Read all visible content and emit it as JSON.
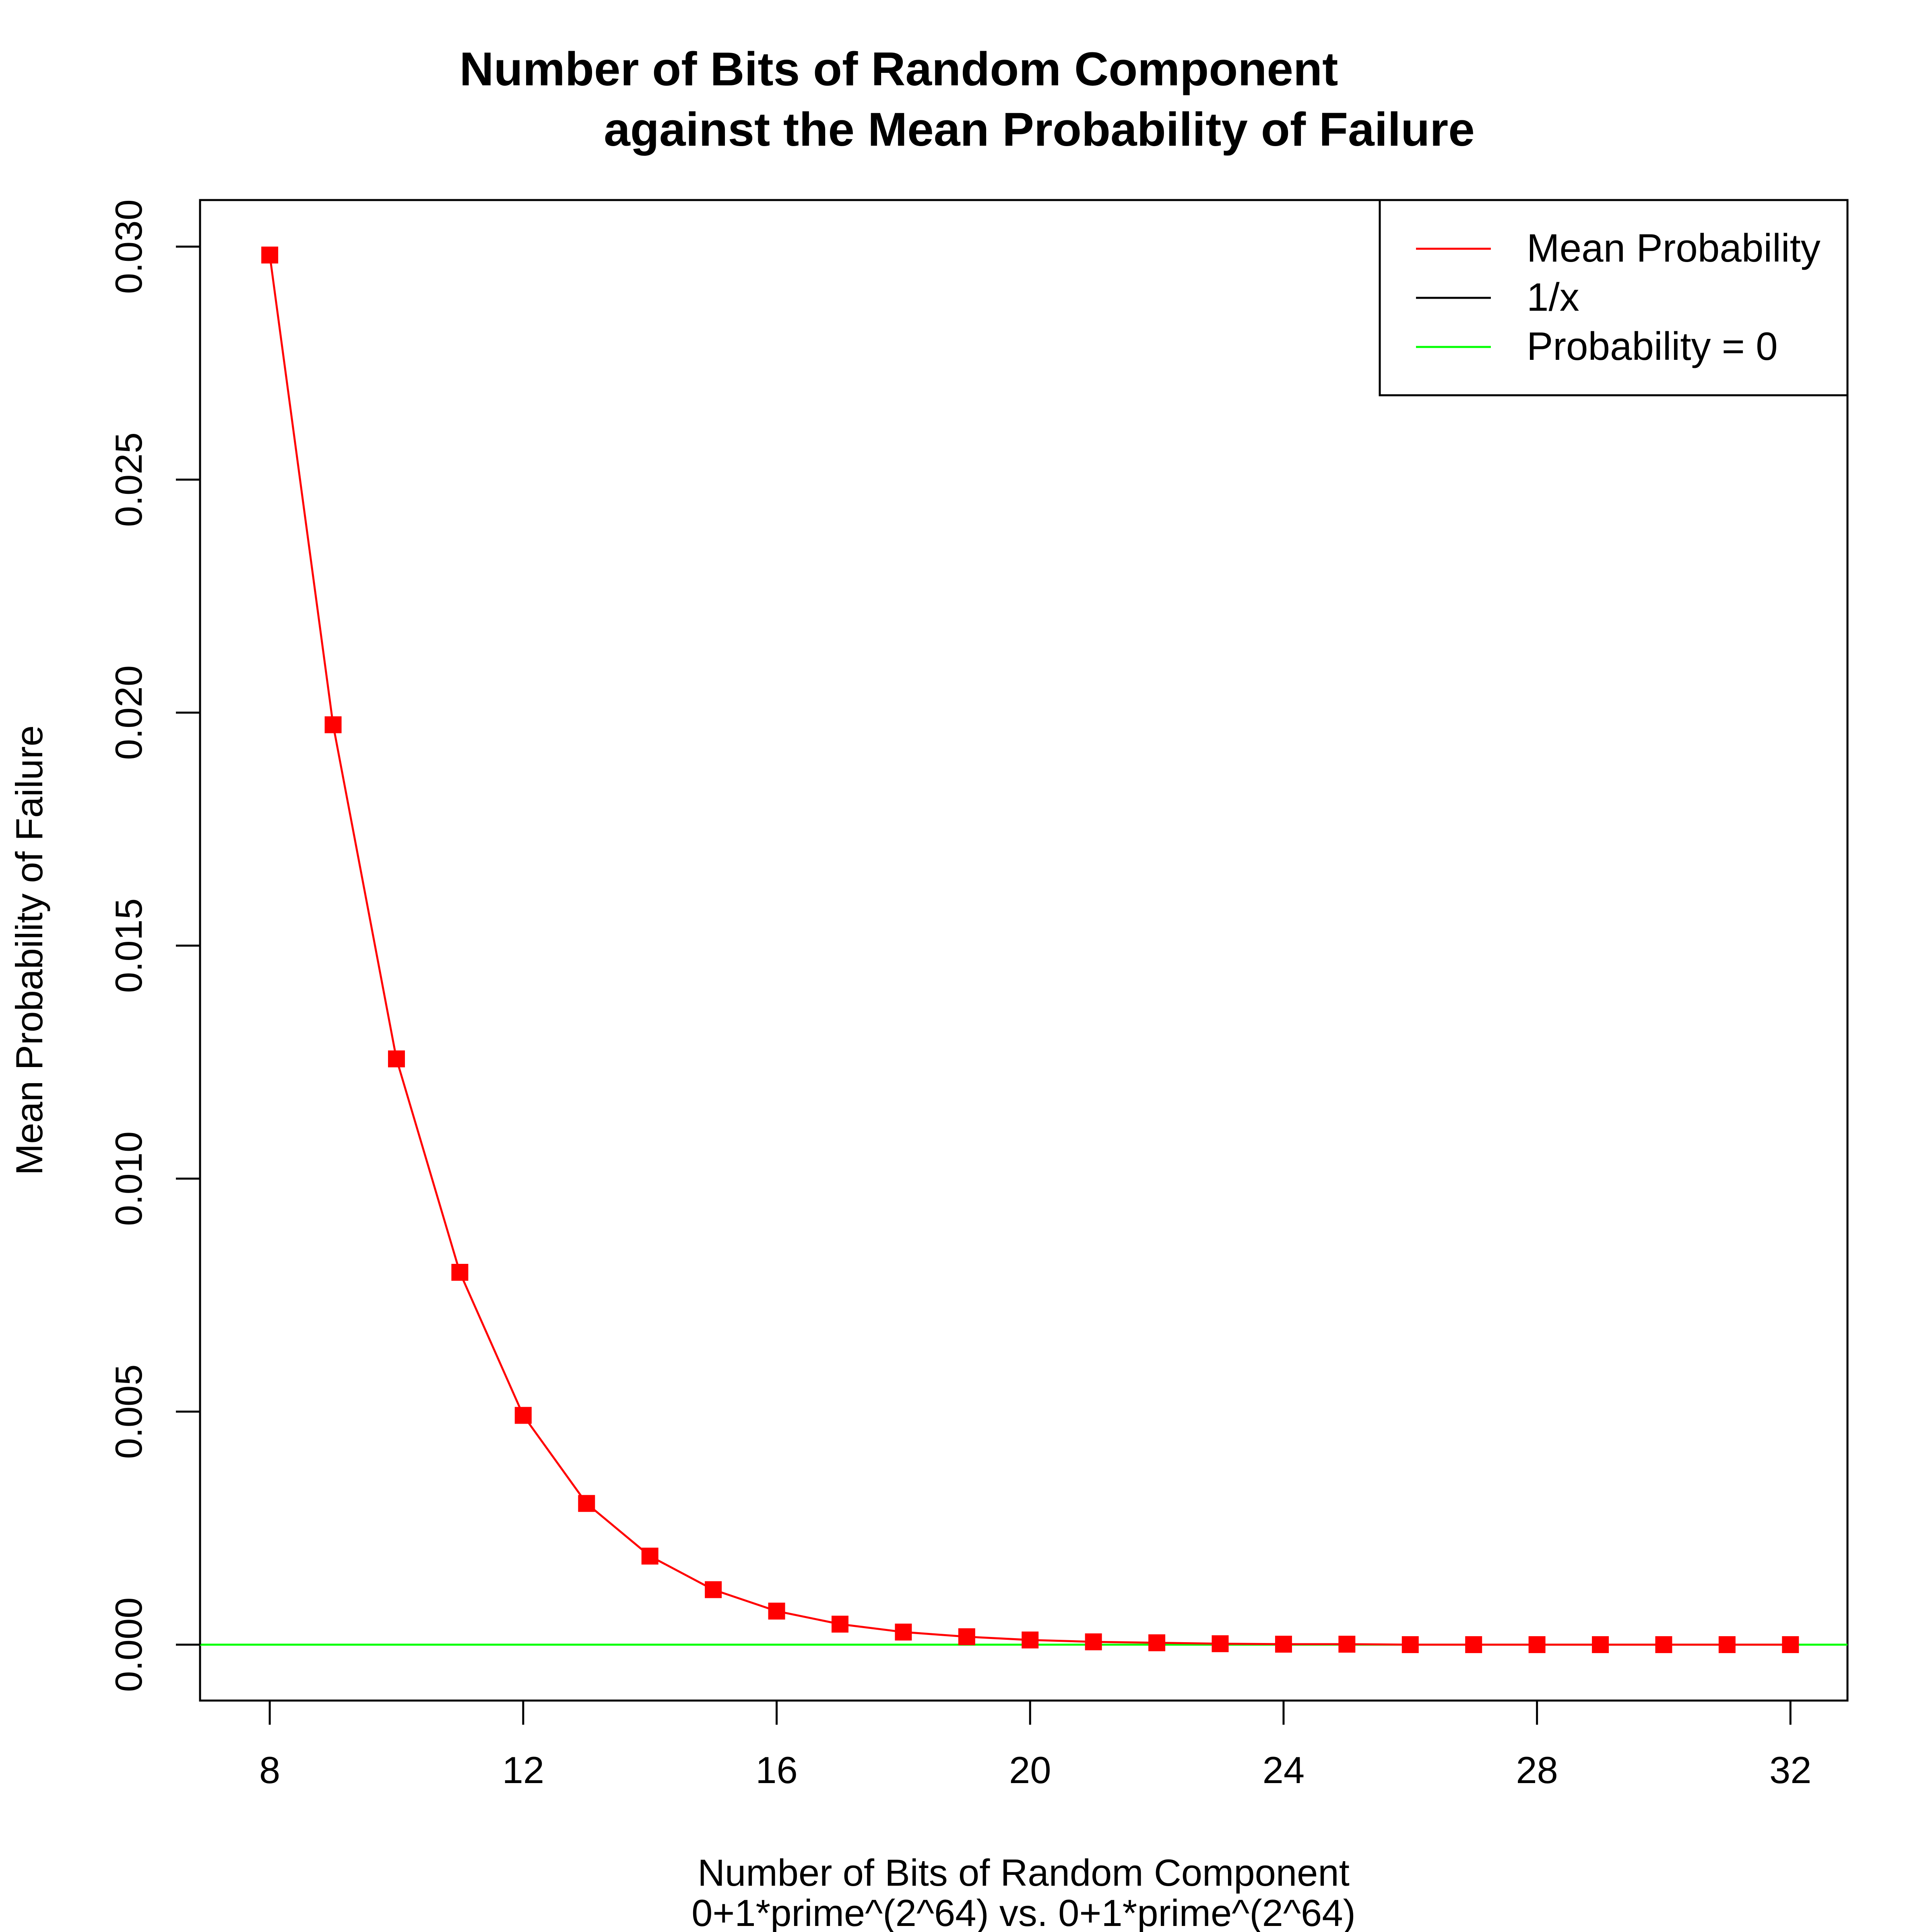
{
  "chart_data": {
    "type": "line",
    "title_line1": "Number of Bits of Random Component",
    "title_line2": "against the Mean Probability of Failure",
    "xlabel_line1": "Number of Bits of Random Component",
    "xlabel_line2": "0+1*prime^(2^64) vs. 0+1*prime^(2^64)",
    "ylabel": "Mean Probability of Failure",
    "xlim": [
      6.9,
      32.9
    ],
    "ylim": [
      -0.0012,
      0.031
    ],
    "x_ticks": [
      8,
      12,
      16,
      20,
      24,
      28,
      32
    ],
    "x_tick_labels": [
      "8",
      "12",
      "16",
      "20",
      "24",
      "28",
      "32"
    ],
    "y_ticks": [
      0.0,
      0.005,
      0.01,
      0.015,
      0.02,
      0.025,
      0.03
    ],
    "y_tick_labels": [
      "0.000",
      "0.005",
      "0.010",
      "0.015",
      "0.020",
      "0.025",
      "0.030"
    ],
    "grid": false,
    "legend_position": "top-right",
    "series": [
      {
        "name": "Mean Probability",
        "color": "#ff0000",
        "marker": "square",
        "x": [
          8,
          9,
          10,
          11,
          12,
          13,
          14,
          15,
          16,
          17,
          18,
          19,
          20,
          21,
          22,
          23,
          24,
          25,
          26,
          27,
          28,
          29,
          30,
          31,
          32
        ],
        "y": [
          0.02982,
          0.01974,
          0.01257,
          0.00799,
          0.00492,
          0.00303,
          0.0019,
          0.00118,
          0.00072,
          0.00044,
          0.00027,
          0.00017,
          0.0001,
          6e-05,
          4e-05,
          2e-05,
          1e-05,
          1e-05,
          0.0,
          0.0,
          0.0,
          0.0,
          0.0,
          0.0,
          0.0
        ]
      }
    ],
    "reference_lines": [
      {
        "name": "1/x",
        "color": "#000000"
      },
      {
        "name": "Probability = 0",
        "color": "#00ff00",
        "y": 0.0
      }
    ]
  }
}
